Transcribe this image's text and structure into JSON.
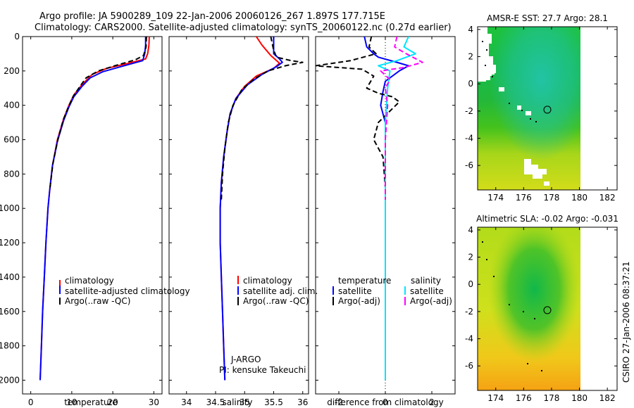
{
  "titles": {
    "line1": "Argo profile: JA 5900289_109 22-Jan-2006 20060126_267 1.897S 177.715E",
    "line2": "Climatology: CARS2000. Satellite-adjusted climatology: synTS_20060122.nc (0.27d earlier)"
  },
  "colors": {
    "climatology": "#ff0000",
    "satellite": "#0000ff",
    "argo": "#000000",
    "sat_salinity": "#00e5ff",
    "argo_salinity": "#ff00ff"
  },
  "chart_data": [
    {
      "type": "line",
      "name": "temperature-profile",
      "xlabel": "temperature",
      "ylabel": "",
      "xlim": [
        -2,
        32
      ],
      "ylim": [
        2080,
        0
      ],
      "xticks": [
        0,
        10,
        20,
        30
      ],
      "yticks": [
        0,
        200,
        400,
        600,
        800,
        1000,
        1200,
        1400,
        1600,
        1800,
        2000
      ],
      "legend": [
        "climatology",
        "satellite-adjusted climatology",
        "Argo(..raw -QC)"
      ],
      "series": [
        {
          "name": "climatology",
          "style": "solid",
          "color": "#ff0000",
          "points": [
            [
              28.9,
              0
            ],
            [
              28.8,
              50
            ],
            [
              28.5,
              100
            ],
            [
              28.0,
              130
            ],
            [
              23.0,
              160
            ],
            [
              18.5,
              185
            ],
            [
              15.0,
              220
            ],
            [
              12.5,
              280
            ],
            [
              10.5,
              340
            ],
            [
              9.3,
              400
            ],
            [
              8.0,
              480
            ],
            [
              6.5,
              600
            ],
            [
              5.3,
              750
            ],
            [
              4.6,
              900
            ],
            [
              4.2,
              1000
            ],
            [
              3.7,
              1200
            ],
            [
              3.3,
              1400
            ],
            [
              2.9,
              1600
            ],
            [
              2.6,
              1800
            ],
            [
              2.3,
              2000
            ]
          ]
        },
        {
          "name": "satellite-adjusted climatology",
          "style": "solid",
          "color": "#0000ff",
          "points": [
            [
              28.0,
              0
            ],
            [
              28.0,
              50
            ],
            [
              27.8,
              100
            ],
            [
              27.3,
              140
            ],
            [
              22.0,
              175
            ],
            [
              17.5,
              205
            ],
            [
              14.5,
              240
            ],
            [
              12.5,
              290
            ],
            [
              10.5,
              350
            ],
            [
              9.3,
              410
            ],
            [
              8.0,
              490
            ],
            [
              6.5,
              610
            ],
            [
              5.3,
              750
            ],
            [
              4.6,
              900
            ],
            [
              4.2,
              1000
            ],
            [
              3.7,
              1200
            ],
            [
              3.3,
              1400
            ],
            [
              2.9,
              1600
            ],
            [
              2.6,
              1800
            ],
            [
              2.3,
              2000
            ]
          ]
        },
        {
          "name": "Argo(..raw -QC)",
          "style": "dashed",
          "color": "#000000",
          "points": [
            [
              28.2,
              0
            ],
            [
              28.1,
              60
            ],
            [
              27.5,
              110
            ],
            [
              25.5,
              135
            ],
            [
              20.5,
              170
            ],
            [
              16.5,
              200
            ],
            [
              13.5,
              240
            ],
            [
              12.0,
              290
            ],
            [
              10.3,
              350
            ],
            [
              9.0,
              420
            ],
            [
              8.0,
              480
            ],
            [
              6.6,
              600
            ],
            [
              5.4,
              740
            ],
            [
              4.7,
              880
            ]
          ]
        }
      ]
    },
    {
      "type": "line",
      "name": "salinity-profile",
      "xlabel": "salinity",
      "xlim": [
        33.7,
        36.1
      ],
      "ylim": [
        2080,
        0
      ],
      "xticks": [
        34,
        34.5,
        35,
        35.5,
        36
      ],
      "legend": [
        "climatology",
        "satellite adj. clim.",
        "Argo(..raw -QC)"
      ],
      "annotation": [
        "J-ARGO",
        "PI: kensuke Takeuchi"
      ],
      "series": [
        {
          "name": "climatology",
          "style": "solid",
          "color": "#ff0000",
          "points": [
            [
              35.2,
              0
            ],
            [
              35.3,
              50
            ],
            [
              35.45,
              110
            ],
            [
              35.6,
              155
            ],
            [
              35.5,
              185
            ],
            [
              35.2,
              230
            ],
            [
              35.0,
              290
            ],
            [
              34.85,
              360
            ],
            [
              34.75,
              450
            ],
            [
              34.7,
              550
            ],
            [
              34.64,
              700
            ],
            [
              34.6,
              850
            ],
            [
              34.58,
              1000
            ],
            [
              34.58,
              1200
            ],
            [
              34.6,
              1400
            ],
            [
              34.62,
              1600
            ],
            [
              34.64,
              1800
            ],
            [
              34.66,
              2000
            ]
          ]
        },
        {
          "name": "satellite adj. clim.",
          "style": "solid",
          "color": "#0000ff",
          "points": [
            [
              35.5,
              0
            ],
            [
              35.5,
              50
            ],
            [
              35.5,
              100
            ],
            [
              35.6,
              130
            ],
            [
              35.65,
              150
            ],
            [
              35.55,
              175
            ],
            [
              35.3,
              220
            ],
            [
              35.05,
              280
            ],
            [
              34.85,
              360
            ],
            [
              34.75,
              450
            ],
            [
              34.7,
              550
            ],
            [
              34.64,
              700
            ],
            [
              34.6,
              850
            ],
            [
              34.58,
              1000
            ],
            [
              34.58,
              1200
            ],
            [
              34.6,
              1400
            ],
            [
              34.62,
              1600
            ],
            [
              34.64,
              1800
            ],
            [
              34.66,
              2000
            ]
          ]
        },
        {
          "name": "Argo(..raw -QC)",
          "style": "dashed",
          "color": "#000000",
          "points": [
            [
              35.45,
              0
            ],
            [
              35.5,
              80
            ],
            [
              35.55,
              120
            ],
            [
              35.8,
              140
            ],
            [
              36.0,
              150
            ],
            [
              35.7,
              170
            ],
            [
              35.4,
              200
            ],
            [
              35.15,
              250
            ],
            [
              34.95,
              310
            ],
            [
              34.8,
              400
            ],
            [
              34.72,
              500
            ],
            [
              34.66,
              650
            ],
            [
              34.62,
              800
            ],
            [
              34.6,
              950
            ]
          ]
        }
      ]
    },
    {
      "type": "line",
      "name": "difference-profile",
      "xlabel": "difference from climatology",
      "xlim": [
        -3,
        3
      ],
      "ylim": [
        2080,
        0
      ],
      "xticks": [
        -2,
        0,
        2
      ],
      "legend_columns": [
        {
          "title": "temperature",
          "items": [
            "satellite",
            "Argo(-adj)"
          ]
        },
        {
          "title": "salinity",
          "items": [
            "satellite",
            "Argo(-adj)"
          ]
        }
      ],
      "series": [
        {
          "name": "temperature satellite",
          "style": "solid",
          "color": "#0000ff",
          "points": [
            [
              -0.9,
              0
            ],
            [
              -0.8,
              60
            ],
            [
              -0.5,
              100
            ],
            [
              -0.3,
              120
            ],
            [
              0.5,
              150
            ],
            [
              1.0,
              170
            ],
            [
              0.6,
              200
            ],
            [
              0.0,
              260
            ],
            [
              -0.1,
              320
            ],
            [
              -0.2,
              400
            ],
            [
              0.0,
              500
            ],
            [
              0.0,
              800
            ],
            [
              0.0,
              2000
            ]
          ]
        },
        {
          "name": "temperature Argo(-adj)",
          "style": "dashed",
          "color": "#000000",
          "points": [
            [
              -0.6,
              0
            ],
            [
              -0.7,
              60
            ],
            [
              -0.4,
              100
            ],
            [
              -1.5,
              140
            ],
            [
              -3.0,
              170
            ],
            [
              -1.0,
              190
            ],
            [
              -0.5,
              230
            ],
            [
              -0.8,
              300
            ],
            [
              -0.3,
              330
            ],
            [
              0.3,
              350
            ],
            [
              0.6,
              380
            ],
            [
              0.3,
              420
            ],
            [
              -0.3,
              500
            ],
            [
              -0.5,
              600
            ],
            [
              -0.1,
              700
            ],
            [
              0.0,
              880
            ]
          ]
        },
        {
          "name": "salinity satellite",
          "style": "solid",
          "color": "#00e5ff",
          "points": [
            [
              1.0,
              0
            ],
            [
              0.8,
              60
            ],
            [
              1.3,
              100
            ],
            [
              0.5,
              140
            ],
            [
              -0.3,
              170
            ],
            [
              0.2,
              200
            ],
            [
              0.1,
              300
            ],
            [
              0.0,
              500
            ],
            [
              0.0,
              2000
            ]
          ]
        },
        {
          "name": "salinity Argo(-adj)",
          "style": "dashed",
          "color": "#ff00ff",
          "points": [
            [
              0.5,
              0
            ],
            [
              0.4,
              60
            ],
            [
              0.9,
              100
            ],
            [
              1.6,
              150
            ],
            [
              0.8,
              180
            ],
            [
              -0.2,
              200
            ],
            [
              0.2,
              250
            ],
            [
              0.0,
              300
            ],
            [
              0.1,
              400
            ],
            [
              0.0,
              600
            ],
            [
              0.0,
              950
            ]
          ]
        }
      ]
    },
    {
      "type": "heatmap",
      "name": "sst-map",
      "title": "AMSR-E SST: 27.7 Argo: 28.1",
      "xlim": [
        172.7,
        182.7
      ],
      "ylim": [
        -7.8,
        4.2
      ],
      "xticks": [
        174,
        176,
        178,
        180,
        182
      ],
      "yticks": [
        -6,
        -4,
        -2,
        0,
        2,
        4
      ],
      "marker": [
        177.7,
        -1.9
      ]
    },
    {
      "type": "heatmap",
      "name": "sla-map",
      "title": "Altimetric SLA: -0.02 Argo: -0.031",
      "xlim": [
        172.7,
        182.7
      ],
      "ylim": [
        -7.8,
        4.2
      ],
      "xticks": [
        174,
        176,
        178,
        180,
        182
      ],
      "yticks": [
        -6,
        -4,
        -2,
        0,
        2,
        4
      ],
      "marker": [
        177.7,
        -1.9
      ]
    }
  ],
  "side_label": "CSIRO 27-Jan-2006 08:37:21"
}
